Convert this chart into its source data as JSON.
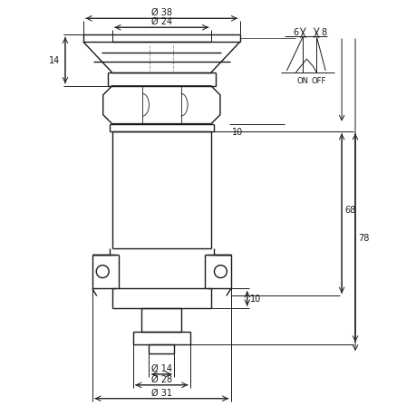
{
  "bg_color": "#ffffff",
  "line_color": "#1a1a1a",
  "text_color": "#1a1a1a",
  "font_size": 7,
  "fig_size": [
    4.6,
    4.6
  ],
  "dpi": 100,
  "dimensions": {
    "d38": "Ø 38",
    "d24": "Ø 24",
    "d31": "Ø 31",
    "d28": "Ø 28",
    "d14": "Ø 14",
    "h14": "14",
    "h10_top": "10",
    "h68": "68",
    "h78": "78",
    "h10_bot": "10",
    "w6": "6",
    "w8": "8"
  }
}
